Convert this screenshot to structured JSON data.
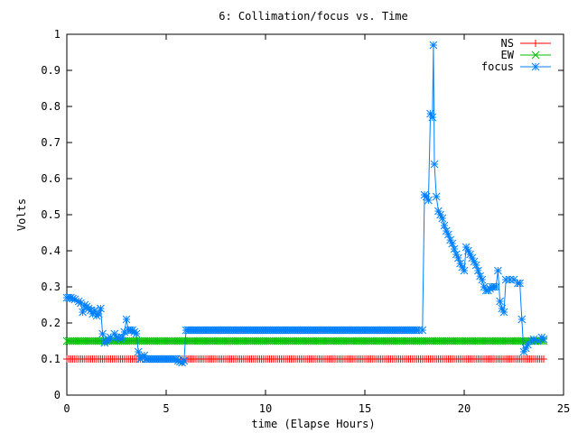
{
  "chart_data": {
    "type": "line",
    "title": "6: Collimation/focus vs. Time",
    "xlabel": "time (Elapse Hours)",
    "ylabel": "Volts",
    "xlim": [
      0,
      25
    ],
    "ylim": [
      0,
      1
    ],
    "x_ticks": [
      "0",
      "5",
      "10",
      "15",
      "20",
      "25"
    ],
    "y_ticks": [
      "0",
      "0.1",
      "0.2",
      "0.3",
      "0.4",
      "0.5",
      "0.6",
      "0.7",
      "0.8",
      "0.9",
      "1"
    ],
    "grid": false,
    "legend_position": "top-right",
    "series": [
      {
        "name": "NS",
        "color": "#ff0000",
        "marker": "plus",
        "points": [
          [
            0,
            0.1
          ],
          [
            24,
            0.1
          ]
        ],
        "marker_step": 0.1
      },
      {
        "name": "EW",
        "color": "#00c000",
        "marker": "cross",
        "points": [
          [
            0,
            0.15
          ],
          [
            24,
            0.15
          ]
        ],
        "marker_step": 0.1
      },
      {
        "name": "focus",
        "color": "#0080ff",
        "marker": "star",
        "points": [
          [
            0.0,
            0.27
          ],
          [
            0.2,
            0.27
          ],
          [
            0.4,
            0.265
          ],
          [
            0.6,
            0.26
          ],
          [
            0.7,
            0.255
          ],
          [
            0.8,
            0.23
          ],
          [
            0.9,
            0.25
          ],
          [
            1.0,
            0.245
          ],
          [
            1.1,
            0.24
          ],
          [
            1.2,
            0.235
          ],
          [
            1.3,
            0.225
          ],
          [
            1.4,
            0.235
          ],
          [
            1.5,
            0.22
          ],
          [
            1.6,
            0.225
          ],
          [
            1.7,
            0.24
          ],
          [
            1.8,
            0.17
          ],
          [
            1.9,
            0.145
          ],
          [
            2.0,
            0.15
          ],
          [
            2.1,
            0.155
          ],
          [
            2.2,
            0.16
          ],
          [
            2.4,
            0.17
          ],
          [
            2.5,
            0.16
          ],
          [
            2.6,
            0.16
          ],
          [
            2.7,
            0.155
          ],
          [
            2.8,
            0.16
          ],
          [
            2.9,
            0.175
          ],
          [
            3.0,
            0.21
          ],
          [
            3.1,
            0.18
          ],
          [
            3.2,
            0.18
          ],
          [
            3.3,
            0.18
          ],
          [
            3.4,
            0.175
          ],
          [
            3.5,
            0.17
          ],
          [
            3.6,
            0.12
          ],
          [
            3.7,
            0.1
          ],
          [
            3.8,
            0.105
          ],
          [
            3.9,
            0.11
          ],
          [
            4.0,
            0.1
          ],
          [
            4.5,
            0.1
          ],
          [
            5.0,
            0.1
          ],
          [
            5.5,
            0.1
          ],
          [
            5.6,
            0.095
          ],
          [
            5.8,
            0.09
          ],
          [
            5.9,
            0.095
          ],
          [
            6.0,
            0.18
          ],
          [
            8.0,
            0.18
          ],
          [
            10.0,
            0.18
          ],
          [
            12.0,
            0.18
          ],
          [
            14.0,
            0.18
          ],
          [
            16.0,
            0.18
          ],
          [
            17.9,
            0.18
          ],
          [
            18.0,
            0.555
          ],
          [
            18.1,
            0.55
          ],
          [
            18.2,
            0.54
          ],
          [
            18.3,
            0.78
          ],
          [
            18.4,
            0.77
          ],
          [
            18.45,
            0.97
          ],
          [
            18.5,
            0.64
          ],
          [
            18.6,
            0.55
          ],
          [
            18.7,
            0.51
          ],
          [
            18.8,
            0.5
          ],
          [
            18.9,
            0.49
          ],
          [
            19.0,
            0.47
          ],
          [
            19.1,
            0.455
          ],
          [
            19.2,
            0.445
          ],
          [
            19.3,
            0.43
          ],
          [
            19.4,
            0.42
          ],
          [
            19.5,
            0.405
          ],
          [
            19.6,
            0.39
          ],
          [
            19.7,
            0.38
          ],
          [
            19.8,
            0.365
          ],
          [
            19.9,
            0.355
          ],
          [
            20.0,
            0.345
          ],
          [
            20.1,
            0.41
          ],
          [
            20.2,
            0.4
          ],
          [
            20.3,
            0.39
          ],
          [
            20.4,
            0.38
          ],
          [
            20.5,
            0.37
          ],
          [
            20.6,
            0.36
          ],
          [
            20.7,
            0.345
          ],
          [
            20.8,
            0.33
          ],
          [
            20.9,
            0.32
          ],
          [
            21.0,
            0.3
          ],
          [
            21.1,
            0.29
          ],
          [
            21.2,
            0.29
          ],
          [
            21.3,
            0.295
          ],
          [
            21.4,
            0.3
          ],
          [
            21.5,
            0.3
          ],
          [
            21.6,
            0.3
          ],
          [
            21.7,
            0.345
          ],
          [
            21.8,
            0.26
          ],
          [
            21.9,
            0.24
          ],
          [
            22.0,
            0.23
          ],
          [
            22.1,
            0.32
          ],
          [
            22.3,
            0.32
          ],
          [
            22.5,
            0.32
          ],
          [
            22.7,
            0.31
          ],
          [
            22.8,
            0.31
          ],
          [
            22.9,
            0.21
          ],
          [
            23.0,
            0.12
          ],
          [
            23.1,
            0.13
          ],
          [
            23.2,
            0.14
          ],
          [
            23.4,
            0.15
          ],
          [
            23.5,
            0.155
          ],
          [
            23.7,
            0.15
          ],
          [
            23.9,
            0.16
          ],
          [
            24.0,
            0.155
          ]
        ],
        "marker_step": 0.1
      }
    ]
  }
}
